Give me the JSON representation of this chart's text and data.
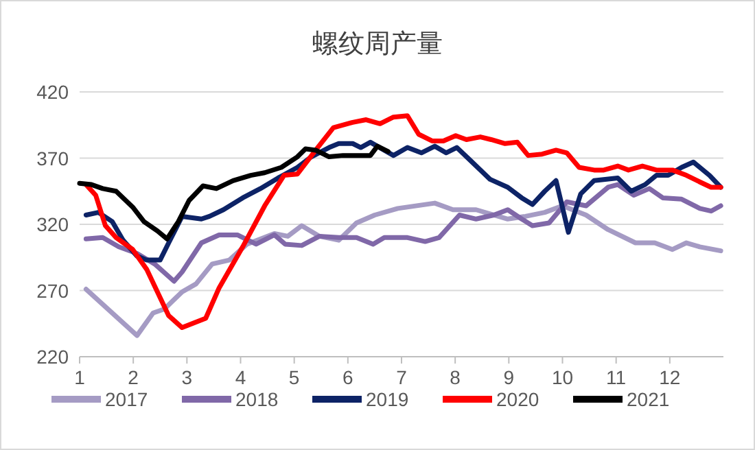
{
  "chart_data": {
    "type": "line",
    "title": "螺纹周产量",
    "xlim": [
      1,
      13
    ],
    "xticks": [
      1,
      2,
      3,
      4,
      5,
      6,
      7,
      8,
      9,
      10,
      11,
      12
    ],
    "ylim": [
      220,
      420
    ],
    "yticks": [
      220,
      270,
      320,
      370,
      420
    ],
    "grid": "y",
    "legend": "bottom",
    "marker": "none",
    "line_style": "solid",
    "series": [
      {
        "name": "2017",
        "color": "#a59bc4",
        "x": [
          1.12,
          2.07,
          2.37,
          2.58,
          2.91,
          3.17,
          3.47,
          3.79,
          4.12,
          4.63,
          4.88,
          5.14,
          5.47,
          5.83,
          6.16,
          6.5,
          6.93,
          7.62,
          7.96,
          8.39,
          8.98,
          9.31,
          9.67,
          10.0,
          10.44,
          10.85,
          11.36,
          11.72,
          12.05,
          12.31,
          12.56,
          12.95
        ],
        "values": [
          271,
          236,
          253,
          256,
          269,
          275,
          290,
          293,
          305,
          313,
          311,
          319,
          311,
          308,
          321,
          327,
          332,
          336,
          331,
          331,
          324,
          326,
          329,
          334,
          327,
          316,
          306,
          306,
          301,
          306,
          303,
          300
        ]
      },
      {
        "name": "2018",
        "color": "#8068a8",
        "x": [
          1.12,
          1.43,
          1.73,
          2.07,
          2.4,
          2.76,
          2.91,
          3.27,
          3.6,
          3.94,
          4.29,
          4.63,
          4.83,
          5.14,
          5.47,
          5.83,
          6.16,
          6.47,
          6.68,
          7.11,
          7.44,
          7.7,
          8.08,
          8.39,
          8.72,
          8.98,
          9.24,
          9.44,
          9.75,
          10.08,
          10.44,
          10.85,
          11.03,
          11.33,
          11.62,
          11.87,
          12.22,
          12.56,
          12.77,
          12.95
        ],
        "values": [
          309,
          310,
          303,
          298,
          290,
          277,
          284,
          306,
          312,
          312,
          305,
          312,
          305,
          304,
          311,
          310,
          310,
          305,
          310,
          310,
          307,
          310,
          327,
          324,
          327,
          331,
          324,
          319,
          321,
          337,
          334,
          348,
          350,
          342,
          347,
          340,
          339,
          332,
          330,
          334
        ]
      },
      {
        "name": "2019",
        "color": "#0d2366",
        "x": [
          1.12,
          1.35,
          1.61,
          1.81,
          2.07,
          2.25,
          2.5,
          2.66,
          2.91,
          3.27,
          3.42,
          3.68,
          4.04,
          4.37,
          4.7,
          5.06,
          5.32,
          5.65,
          5.83,
          6.09,
          6.24,
          6.42,
          6.85,
          7.11,
          7.37,
          7.62,
          7.83,
          8.03,
          8.29,
          8.65,
          8.98,
          9.24,
          9.44,
          9.67,
          9.88,
          10.11,
          10.34,
          10.59,
          11.03,
          11.28,
          11.54,
          11.75,
          11.97,
          12.22,
          12.44,
          12.74,
          12.95
        ],
        "values": [
          327,
          329,
          322,
          308,
          296,
          293,
          293,
          306,
          326,
          324,
          326,
          331,
          340,
          347,
          355,
          363,
          371,
          378,
          381,
          381,
          378,
          382,
          372,
          378,
          374,
          379,
          374,
          378,
          368,
          354,
          348,
          340,
          335,
          345,
          353,
          314,
          343,
          353,
          355,
          345,
          350,
          357,
          357,
          363,
          367,
          357,
          348
        ]
      },
      {
        "name": "2020",
        "color": "#ff0000",
        "x": [
          1.12,
          1.3,
          1.48,
          1.68,
          1.99,
          2.25,
          2.66,
          2.91,
          3.35,
          3.6,
          4.04,
          4.45,
          4.81,
          5.06,
          5.4,
          5.73,
          6.09,
          6.34,
          6.6,
          6.85,
          7.11,
          7.32,
          7.57,
          7.78,
          8.01,
          8.21,
          8.47,
          8.67,
          8.93,
          9.16,
          9.36,
          9.62,
          9.88,
          10.08,
          10.31,
          10.59,
          10.77,
          11.03,
          11.23,
          11.49,
          11.75,
          12.05,
          12.31,
          12.56,
          12.77,
          12.95
        ],
        "values": [
          350,
          342,
          319,
          310,
          301,
          286,
          251,
          242,
          249,
          272,
          303,
          334,
          357,
          358,
          376,
          393,
          397,
          399,
          396,
          401,
          402,
          388,
          383,
          383,
          387,
          384,
          386,
          384,
          381,
          382,
          372,
          373,
          376,
          374,
          363,
          361,
          361,
          364,
          361,
          364,
          361,
          361,
          357,
          352,
          348,
          348
        ]
      },
      {
        "name": "2021",
        "color": "#000000",
        "x": [
          1.0,
          1.22,
          1.43,
          1.68,
          1.99,
          2.2,
          2.45,
          2.63,
          2.84,
          3.04,
          3.3,
          3.55,
          3.86,
          4.19,
          4.45,
          4.76,
          5.06,
          5.21,
          5.4,
          5.65,
          5.91,
          6.24,
          6.42,
          6.55,
          6.75
        ],
        "values": [
          351,
          350,
          347,
          345,
          333,
          322,
          315,
          309,
          322,
          338,
          349,
          347,
          353,
          357,
          359,
          363,
          371,
          377,
          376,
          371,
          372,
          372,
          372,
          379,
          375
        ]
      }
    ]
  }
}
